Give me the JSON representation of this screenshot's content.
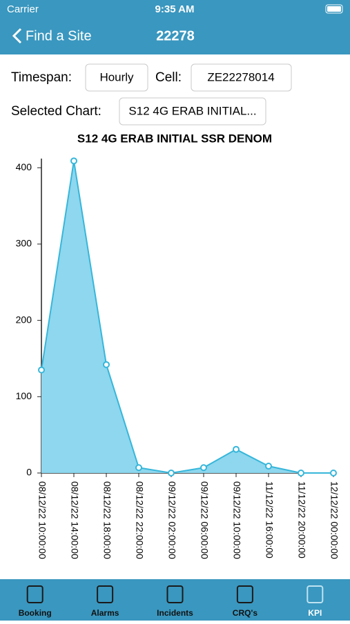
{
  "status": {
    "carrier": "Carrier",
    "time": "9:35 AM"
  },
  "nav": {
    "back": "Find a Site",
    "title": "22278"
  },
  "controls": {
    "timespan_label": "Timespan:",
    "timespan": "Hourly",
    "cell_label": "Cell:",
    "cell": "ZE22278014",
    "chart_label": "Selected Chart:",
    "chart": "S12 4G ERAB INITIAL..."
  },
  "tabs": [
    "Booking",
    "Alarms",
    "Incidents",
    "CRQ's",
    "KPI"
  ],
  "chart_data": {
    "type": "line",
    "title": "S12 4G ERAB INITIAL SSR DENOM",
    "categories": [
      "08/12/22 10:00:00",
      "08/12/22 14:00:00",
      "08/12/22 18:00:00",
      "08/12/22 22:00:00",
      "09/12/22 02:00:00",
      "09/12/22 06:00:00",
      "09/12/22 10:00:00",
      "11/12/22 16:00:00",
      "11/12/22 20:00:00",
      "12/12/22 00:00:00"
    ],
    "values": [
      135,
      409,
      142,
      7,
      0,
      7,
      31,
      9,
      0,
      0
    ],
    "color": "#36b6da",
    "fill": "#8ed7ee",
    "ylim": [
      0,
      412
    ],
    "yticks": [
      0,
      100,
      200,
      300,
      400
    ]
  }
}
